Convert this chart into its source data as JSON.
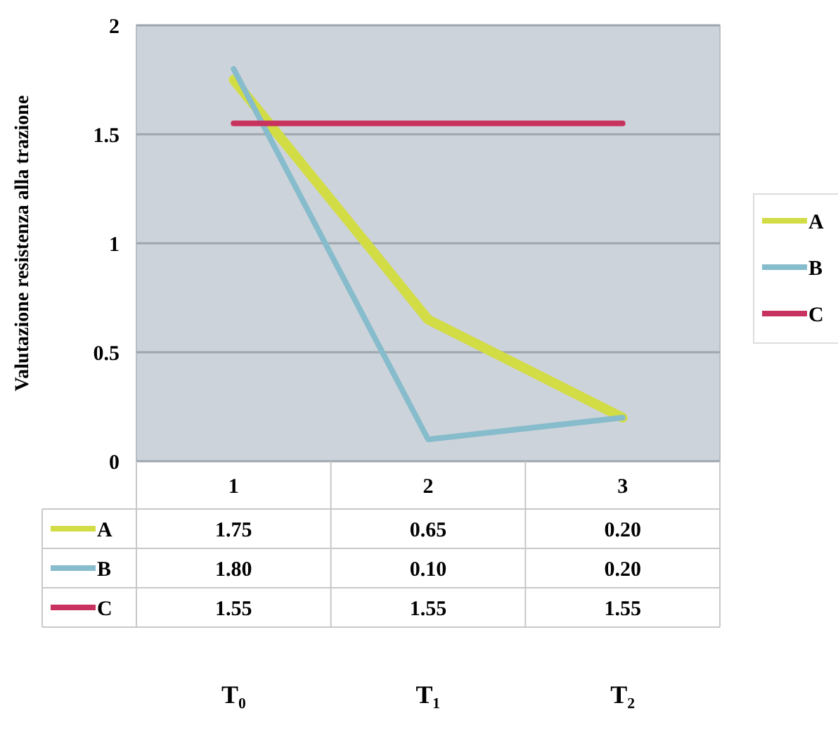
{
  "chart_data": {
    "type": "line",
    "ylabel": "Valutazione resistenza alla trazione",
    "categories": [
      "1",
      "2",
      "3"
    ],
    "series": [
      {
        "name": "A",
        "color": "#d2dc45",
        "values": [
          1.75,
          0.65,
          0.2
        ],
        "value_labels": [
          "1.75",
          "0.65",
          "0.20"
        ]
      },
      {
        "name": "B",
        "color": "#86bccb",
        "values": [
          1.8,
          0.1,
          0.2
        ],
        "value_labels": [
          "1.80",
          "0.10",
          "0.20"
        ]
      },
      {
        "name": "C",
        "color": "#c8325e",
        "values": [
          1.55,
          1.55,
          1.55
        ],
        "value_labels": [
          "1.55",
          "1.55",
          "1.55"
        ]
      }
    ],
    "ylim": [
      0,
      2
    ],
    "yticks": [
      0,
      0.5,
      1,
      1.5,
      2
    ],
    "grid": "y",
    "legend": "right",
    "annotations": [
      "T₀",
      "T₁",
      "T₂"
    ]
  }
}
